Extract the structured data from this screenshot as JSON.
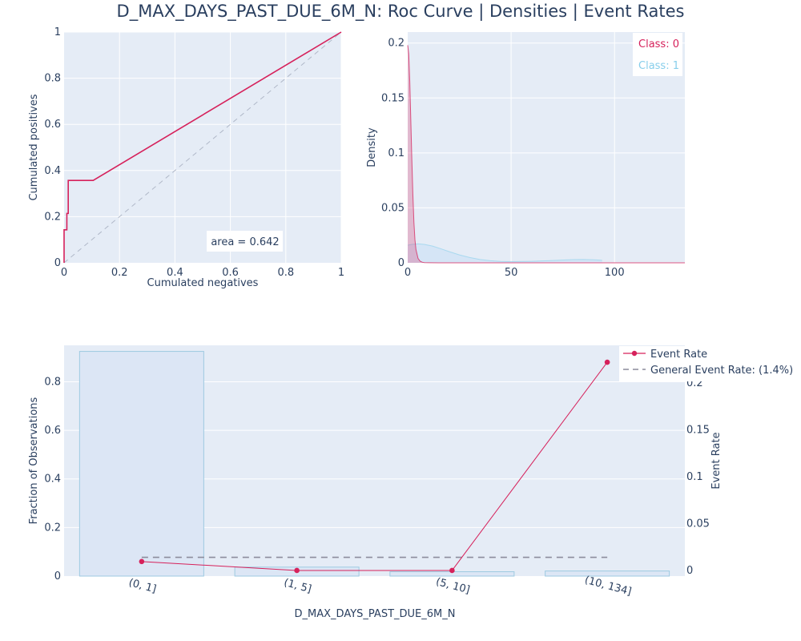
{
  "title": "D_MAX_DAYS_PAST_DUE_6M_N: Roc Curve | Densities | Event Rates",
  "colors": {
    "class0": "#d6215b",
    "class1": "#87ceeb",
    "class1_fill": "#cfe3f6",
    "bar_fill": "#dce6f5",
    "bar_stroke": "#9ecae1",
    "general_rate": "#8c8c9c",
    "diag": "#b0b8c8"
  },
  "chart_data": [
    {
      "type": "line",
      "name": "roc",
      "xlabel": "Cumulated negatives",
      "ylabel": "Cumulated positives",
      "xlim": [
        0,
        1
      ],
      "ylim": [
        0,
        1
      ],
      "xticks": [
        0,
        0.2,
        0.4,
        0.6,
        0.8,
        1
      ],
      "xtick_labels": [
        "0",
        "0.2",
        "0.4",
        "0.6",
        "0.8",
        "1"
      ],
      "yticks": [
        0,
        0.2,
        0.4,
        0.6,
        0.8,
        1
      ],
      "ytick_labels": [
        "0",
        "0.2",
        "0.4",
        "0.6",
        "0.8",
        "1"
      ],
      "annotation": "area = 0.642",
      "x": [
        0,
        0,
        0.01,
        0.01,
        0.015,
        0.015,
        0.105,
        1
      ],
      "y": [
        0,
        0.143,
        0.143,
        0.214,
        0.214,
        0.357,
        0.357,
        1
      ],
      "diagonal": true
    },
    {
      "type": "area",
      "name": "densities",
      "xlabel": "",
      "ylabel": "Density",
      "xlim": [
        0,
        134
      ],
      "ylim": [
        0,
        0.21
      ],
      "xticks": [
        0,
        50,
        100
      ],
      "xtick_labels": [
        "0",
        "50",
        "100"
      ],
      "yticks": [
        0,
        0.05,
        0.1,
        0.15,
        0.2
      ],
      "ytick_labels": [
        "0",
        "0.05",
        "0.1",
        "0.15",
        "0.2"
      ],
      "legend": [
        "Class: 0",
        "Class: 1"
      ],
      "legend_position": "top-right",
      "series": [
        {
          "name": "Class: 0",
          "x": [
            0,
            0.5,
            1,
            1.5,
            2,
            2.5,
            3,
            3.5,
            4,
            5,
            6,
            7,
            8,
            10,
            15,
            30,
            60,
            100,
            134
          ],
          "y": [
            0.198,
            0.19,
            0.165,
            0.13,
            0.094,
            0.062,
            0.037,
            0.021,
            0.012,
            0.004,
            0.0015,
            0.0006,
            0.0002,
            0.0001,
            0,
            0,
            0,
            0,
            0
          ]
        },
        {
          "name": "Class: 1",
          "x": [
            0,
            2,
            5,
            8,
            12,
            16,
            20,
            25,
            30,
            35,
            40,
            45,
            50,
            60,
            70,
            80,
            85,
            90,
            94
          ],
          "y": [
            0.016,
            0.0168,
            0.0172,
            0.0168,
            0.0152,
            0.0128,
            0.0102,
            0.0072,
            0.0048,
            0.003,
            0.0019,
            0.0013,
            0.0011,
            0.0014,
            0.0021,
            0.0029,
            0.003,
            0.0027,
            0.0023
          ]
        }
      ]
    },
    {
      "type": "bar",
      "name": "event-rates",
      "xlabel": "D_MAX_DAYS_PAST_DUE_6M_N",
      "ylabel": "Fraction of Observations",
      "y2label": "Event Rate",
      "categories": [
        "(0, 1]",
        "(1, 5]",
        "(5, 10]",
        "(10, 134]"
      ],
      "values": [
        0.925,
        0.037,
        0.018,
        0.021
      ],
      "ylim": [
        0,
        0.95
      ],
      "yticks": [
        0,
        0.2,
        0.4,
        0.6,
        0.8
      ],
      "ytick_labels": [
        "0",
        "0.2",
        "0.4",
        "0.6",
        "0.8"
      ],
      "y2lim": [
        -0.006,
        0.24
      ],
      "y2ticks": [
        0,
        0.05,
        0.1,
        0.15,
        0.2
      ],
      "y2tick_labels": [
        "0",
        "0.05",
        "0.1",
        "0.15",
        "0.2"
      ],
      "legend": [
        "Event Rate",
        "General Event Rate: (1.4%)"
      ],
      "legend_position": "top-right",
      "event_rate": [
        0.0095,
        0,
        0,
        0.222
      ],
      "general_event_rate": 0.014
    }
  ]
}
